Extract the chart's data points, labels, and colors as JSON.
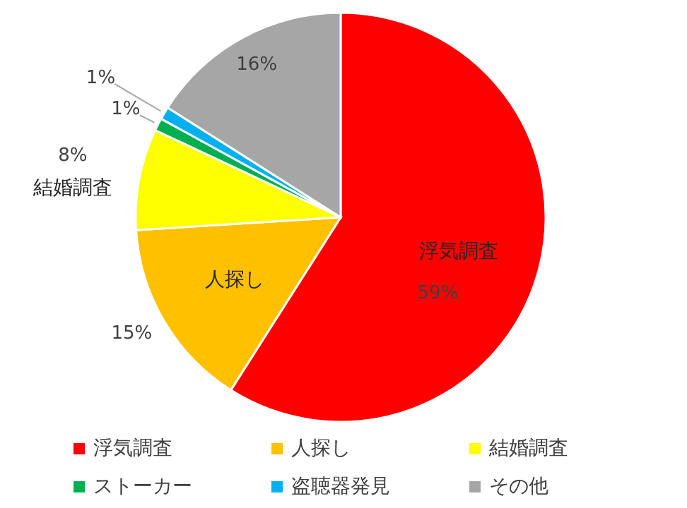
{
  "chart_data": {
    "type": "pie",
    "categories": [
      "浮気調査",
      "人探し",
      "結婚調査",
      "ストーカー",
      "盗聴器発見",
      "その他"
    ],
    "values": [
      59,
      15,
      8,
      1,
      1,
      16
    ],
    "colors": [
      "#ff0000",
      "#ffc000",
      "#ffff00",
      "#00b050",
      "#00b0f0",
      "#a6a6a6"
    ],
    "value_labels": [
      "59%",
      "15%",
      "8%",
      "1%",
      "1%",
      "16%"
    ],
    "annotations": [
      {
        "text": "浮気調査",
        "x": "浮気調査"
      },
      {
        "text": "人探し",
        "x": "人探し"
      },
      {
        "text": "結婚調査",
        "x": "結婚調査"
      }
    ],
    "legend": "bottom"
  }
}
